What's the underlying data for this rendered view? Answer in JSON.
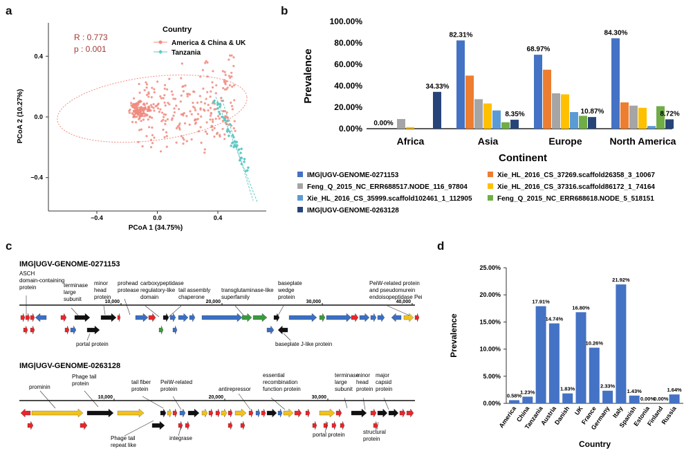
{
  "panels": {
    "a": {
      "letter": "a",
      "stats": {
        "r": "R : 0.773",
        "p": "p : 0.001"
      },
      "legend": {
        "title": "Country",
        "items": [
          {
            "label": "America & China & UK",
            "color": "#f08a7e"
          },
          {
            "label": "Tanzania",
            "color": "#5cc9c4"
          }
        ]
      },
      "xlabel": "PCoA 1 (34.75%)",
      "ylabel": "PCoA 2 (10.27%)",
      "xticks": [
        "−0.4",
        "0.0",
        "0.4"
      ],
      "yticks": [
        "0.4",
        "0.0",
        "−0.4"
      ]
    },
    "b": {
      "letter": "b",
      "xlabel": "Continent",
      "ylabel": "Prevalence",
      "yticks": [
        "100.00%",
        "80.00%",
        "60.00%",
        "40.00%",
        "20.00%",
        "0.00%"
      ],
      "legend": [
        {
          "label": "IMG|UGV-GENOME-0271153",
          "color": "#4472c4"
        },
        {
          "label": "Xie_HL_2016_CS_37269.scaffold26358_3_10067",
          "color": "#ed7d31"
        },
        {
          "label": "Feng_Q_2015_NC_ERR688517.NODE_116_97804",
          "color": "#a5a5a5"
        },
        {
          "label": "Xie_HL_2016_CS_37316.scaffold86172_1_74164",
          "color": "#ffc000"
        },
        {
          "label": "Xie_HL_2016_CS_35999.scaffold102461_1_112905",
          "color": "#5b9bd5"
        },
        {
          "label": "Feng_Q_2015_NC_ERR688618.NODE_5_518151",
          "color": "#70ad47"
        },
        {
          "label": "IMG|UGV-GENOME-0263128",
          "color": "#264478"
        }
      ]
    },
    "c": {
      "letter": "c",
      "genome1": {
        "title": "IMG|UGV-GENOME-0271153",
        "labels": [
          "ASCH domain-containing protein",
          "terminase large subunit",
          "minor head protein",
          "prohead protease",
          "carboxypeptidase regulatory-like domain",
          "tail assembly chaperone",
          "transglutaminase-like superfamily",
          "baseplate wedge protein",
          "PeiW-related protein and pseudomurein endoisopeptidase Pei",
          "portal protein",
          "baseplate J-like protein"
        ],
        "ticks": [
          "10,000",
          "20,000",
          "30,000",
          "40,000"
        ]
      },
      "genome2": {
        "title": "IMG|UGV-GENOME-0263128",
        "labels": [
          "prominin",
          "Phage tail protein",
          "tail fiber protein",
          "PeiW-related protein",
          "antirepressor",
          "essential recombination function protein",
          "terminase large subunit",
          "minor head protein",
          "major capsid protein",
          "Phage tail repeat like",
          "integrase",
          "portal protein",
          "structural protein"
        ],
        "ticks": [
          "10,000",
          "20,000",
          "30,000"
        ]
      }
    },
    "d": {
      "letter": "d",
      "xlabel": "Country",
      "ylabel": "Prevalence",
      "yticks": [
        "25.00%",
        "20.00%",
        "15.00%",
        "10.00%",
        "5.00%",
        "0.00%"
      ]
    }
  },
  "chart_data": [
    {
      "id": "b",
      "type": "bar",
      "categories": [
        "Africa",
        "Asia",
        "Europe",
        "North America"
      ],
      "ylim": [
        0,
        100
      ],
      "series": [
        {
          "name": "IMG|UGV-GENOME-0271153",
          "color": "#4472c4",
          "values": [
            0,
            82.31,
            68.97,
            84.3
          ]
        },
        {
          "name": "Xie_HL_2016_CS_37269.scaffold26358_3_10067",
          "color": "#ed7d31",
          "values": [
            0,
            49.5,
            55,
            24.5
          ]
        },
        {
          "name": "Feng_Q_2015_NC_ERR688517.NODE_116_97804",
          "color": "#a5a5a5",
          "values": [
            9,
            27.5,
            33,
            21.5
          ]
        },
        {
          "name": "Xie_HL_2016_CS_37316.scaffold86172_1_74164",
          "color": "#ffc000",
          "values": [
            1.5,
            23.5,
            32,
            19.5
          ]
        },
        {
          "name": "Xie_HL_2016_CS_35999.scaffold102461_1_112905",
          "color": "#5b9bd5",
          "values": [
            0,
            17,
            15.5,
            2.5
          ]
        },
        {
          "name": "Feng_Q_2015_NC_ERR688618.NODE_5_518151",
          "color": "#70ad47",
          "values": [
            0,
            6,
            12,
            21
          ]
        },
        {
          "name": "IMG|UGV-GENOME-0263128",
          "color": "#264478",
          "values": [
            34.33,
            8.35,
            10.87,
            8.72
          ]
        }
      ],
      "data_labels": [
        {
          "text": "0.00%",
          "category": "Africa",
          "series": 0
        },
        {
          "text": "34.33%",
          "category": "Africa",
          "series": 6
        },
        {
          "text": "82.31%",
          "category": "Asia",
          "series": 0
        },
        {
          "text": "8.35%",
          "category": "Asia",
          "series": 6
        },
        {
          "text": "68.97%",
          "category": "Europe",
          "series": 0
        },
        {
          "text": "10.87%",
          "category": "Europe",
          "series": 6
        },
        {
          "text": "84.30%",
          "category": "North America",
          "series": 0
        },
        {
          "text": "8.72%",
          "category": "North America",
          "series": 6
        }
      ]
    },
    {
      "id": "d",
      "type": "bar",
      "categories": [
        "America",
        "China",
        "Tanzania",
        "Austria",
        "Danish",
        "UK",
        "France",
        "Germany",
        "Italy",
        "Spanish",
        "Estonia",
        "Finland",
        "Russia"
      ],
      "values": [
        0.58,
        1.23,
        17.91,
        14.74,
        1.83,
        16.8,
        10.26,
        2.33,
        21.92,
        1.43,
        0.0,
        0.0,
        1.64
      ],
      "labels": [
        "0.58%",
        "1.23%",
        "17.91%",
        "14.74%",
        "1.83%",
        "16.80%",
        "10.26%",
        "2.33%",
        "21.92%",
        "1.43%",
        "0.00%",
        "0.00%",
        "1.64%"
      ],
      "color": "#4472c4",
      "ylim": [
        0,
        25
      ]
    },
    {
      "id": "a",
      "type": "scatter",
      "xlim": [
        -0.72,
        0.72
      ],
      "ylim": [
        -0.62,
        0.62
      ],
      "series": [
        {
          "name": "America & China & UK",
          "color": "#f08a7e",
          "distribution": {
            "cx": 0.02,
            "cy": 0.02,
            "sx": 0.2,
            "sy": 0.13
          }
        },
        {
          "name": "Tanzania",
          "color": "#5cc9c4",
          "line": {
            "from": [
              0.4,
              -0.02
            ],
            "to": [
              0.63,
              -0.5
            ]
          }
        }
      ]
    }
  ]
}
